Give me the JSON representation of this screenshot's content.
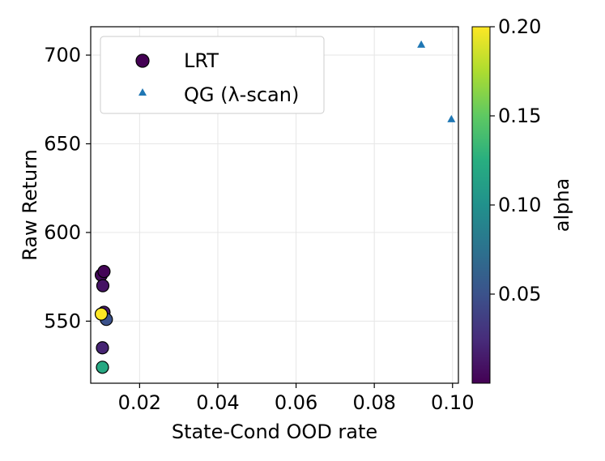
{
  "chart_data": {
    "type": "scatter",
    "xlabel": "State-Cond OOD rate",
    "ylabel": "Raw Return",
    "xlim": [
      0.0075,
      0.1015
    ],
    "ylim": [
      515,
      716
    ],
    "xticks": [
      0.02,
      0.04,
      0.06,
      0.08,
      0.1
    ],
    "xtick_labels": [
      "0.02",
      "0.04",
      "0.06",
      "0.08",
      "0.10"
    ],
    "yticks": [
      550,
      600,
      650,
      700
    ],
    "ytick_labels": [
      "550",
      "600",
      "650",
      "700"
    ],
    "grid": true,
    "legend_position": "top-left",
    "series": [
      {
        "name": "LRT",
        "marker": "circle",
        "color_by": "alpha",
        "points": [
          {
            "x": 0.0102,
            "y": 576,
            "alpha": 0.005
          },
          {
            "x": 0.0109,
            "y": 578,
            "alpha": 0.002
          },
          {
            "x": 0.0106,
            "y": 570,
            "alpha": 0.01
          },
          {
            "x": 0.0109,
            "y": 555,
            "alpha": 0.015
          },
          {
            "x": 0.0115,
            "y": 551,
            "alpha": 0.05
          },
          {
            "x": 0.0105,
            "y": 535,
            "alpha": 0.02
          },
          {
            "x": 0.0105,
            "y": 524,
            "alpha": 0.12
          },
          {
            "x": 0.0102,
            "y": 554,
            "alpha": 0.2
          }
        ]
      },
      {
        "name": "QG (λ-scan)",
        "marker": "triangle",
        "color": "#1f77b4",
        "points": [
          {
            "x": 0.092,
            "y": 706
          },
          {
            "x": 0.0997,
            "y": 664
          }
        ]
      }
    ],
    "colorbar": {
      "label": "alpha",
      "min": 0.0,
      "max": 0.2,
      "ticks": [
        0.05,
        0.1,
        0.15,
        0.2
      ],
      "tick_labels": [
        "0.05",
        "0.10",
        "0.15",
        "0.20"
      ],
      "colormap": "viridis"
    }
  }
}
